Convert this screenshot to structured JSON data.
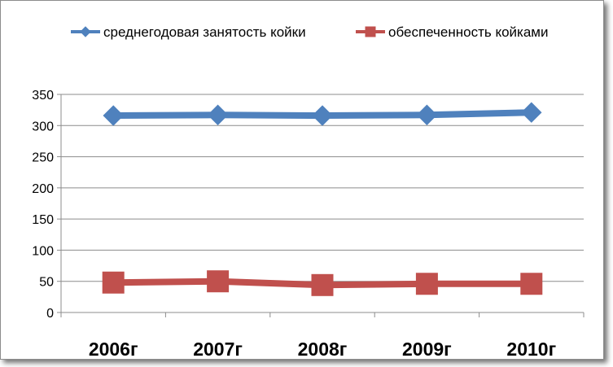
{
  "chart_data": {
    "type": "line",
    "title": "",
    "xlabel": "",
    "ylabel": "",
    "categories": [
      "2006г",
      "2007г",
      "2008г",
      "2009г",
      "2010г"
    ],
    "ylim": [
      0,
      350
    ],
    "yticks": [
      0,
      50,
      100,
      150,
      200,
      250,
      300,
      350
    ],
    "grid": true,
    "legend_position": "top",
    "series": [
      {
        "name": "среднегодовая занятость койки",
        "values": [
          316,
          317,
          316,
          317,
          321
        ],
        "color": "#4f81bd",
        "marker": "diamond"
      },
      {
        "name": "обеспеченность койками",
        "values": [
          48,
          50,
          44,
          46,
          46
        ],
        "color": "#c0504d",
        "marker": "square"
      }
    ]
  }
}
